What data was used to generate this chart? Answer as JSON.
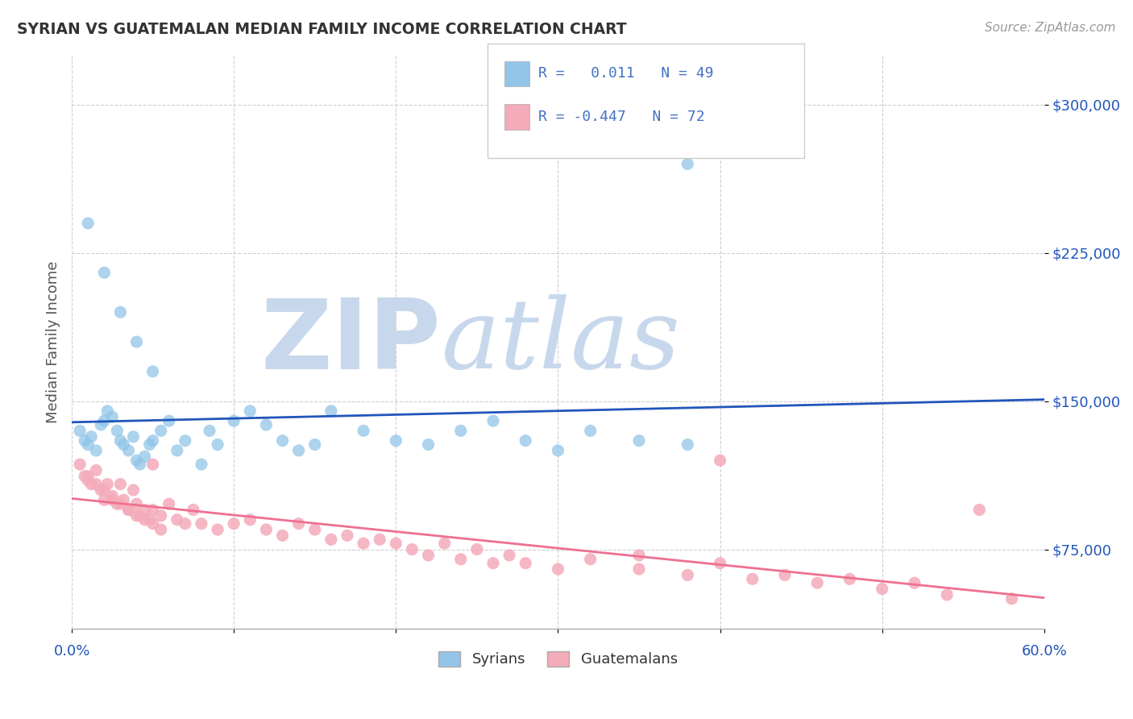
{
  "title": "SYRIAN VS GUATEMALAN MEDIAN FAMILY INCOME CORRELATION CHART",
  "source": "Source: ZipAtlas.com",
  "ylabel": "Median Family Income",
  "y_ticks": [
    75000,
    150000,
    225000,
    300000
  ],
  "y_tick_labels": [
    "$75,000",
    "$150,000",
    "$225,000",
    "$300,000"
  ],
  "xlim": [
    0.0,
    0.6
  ],
  "ylim": [
    35000,
    325000
  ],
  "syrians_R": "0.011",
  "syrians_N": "49",
  "guatemalans_R": "-0.447",
  "guatemalans_N": "72",
  "syrian_color": "#92C5E8",
  "guatemalan_color": "#F4ABBA",
  "syrian_line_color": "#2255BB",
  "guatemalan_line_color": "#EE7090",
  "watermark_zip": "ZIP",
  "watermark_atlas": "atlas",
  "watermark_color": "#C8D8EC",
  "legend_label_syrian": "Syrians",
  "legend_label_guatemalan": "Guatemalans",
  "legend_text_color": "#4472C4",
  "syrians_x": [
    0.005,
    0.008,
    0.01,
    0.012,
    0.015,
    0.018,
    0.02,
    0.022,
    0.025,
    0.028,
    0.03,
    0.032,
    0.035,
    0.038,
    0.04,
    0.042,
    0.045,
    0.048,
    0.05,
    0.055,
    0.06,
    0.065,
    0.07,
    0.08,
    0.085,
    0.09,
    0.1,
    0.11,
    0.12,
    0.13,
    0.14,
    0.15,
    0.16,
    0.18,
    0.2,
    0.22,
    0.24,
    0.26,
    0.28,
    0.3,
    0.32,
    0.35,
    0.38,
    0.01,
    0.02,
    0.03,
    0.04,
    0.05,
    0.38
  ],
  "syrians_y": [
    135000,
    130000,
    128000,
    132000,
    125000,
    138000,
    140000,
    145000,
    142000,
    135000,
    130000,
    128000,
    125000,
    132000,
    120000,
    118000,
    122000,
    128000,
    130000,
    135000,
    140000,
    125000,
    130000,
    118000,
    135000,
    128000,
    140000,
    145000,
    138000,
    130000,
    125000,
    128000,
    145000,
    135000,
    130000,
    128000,
    135000,
    140000,
    130000,
    125000,
    135000,
    130000,
    128000,
    240000,
    215000,
    195000,
    180000,
    165000,
    270000
  ],
  "guatemalans_x": [
    0.005,
    0.008,
    0.01,
    0.012,
    0.015,
    0.018,
    0.02,
    0.022,
    0.025,
    0.028,
    0.03,
    0.032,
    0.035,
    0.038,
    0.04,
    0.042,
    0.045,
    0.048,
    0.05,
    0.055,
    0.06,
    0.065,
    0.07,
    0.075,
    0.08,
    0.09,
    0.1,
    0.11,
    0.12,
    0.13,
    0.14,
    0.15,
    0.16,
    0.17,
    0.18,
    0.19,
    0.2,
    0.21,
    0.22,
    0.23,
    0.24,
    0.25,
    0.26,
    0.27,
    0.28,
    0.3,
    0.32,
    0.35,
    0.38,
    0.4,
    0.42,
    0.44,
    0.46,
    0.48,
    0.5,
    0.52,
    0.54,
    0.01,
    0.015,
    0.02,
    0.025,
    0.03,
    0.035,
    0.04,
    0.045,
    0.05,
    0.055,
    0.56,
    0.58,
    0.05,
    0.35,
    0.4
  ],
  "guatemalans_y": [
    118000,
    112000,
    110000,
    108000,
    115000,
    105000,
    100000,
    108000,
    102000,
    98000,
    108000,
    100000,
    95000,
    105000,
    98000,
    92000,
    95000,
    90000,
    95000,
    92000,
    98000,
    90000,
    88000,
    95000,
    88000,
    85000,
    88000,
    90000,
    85000,
    82000,
    88000,
    85000,
    80000,
    82000,
    78000,
    80000,
    78000,
    75000,
    72000,
    78000,
    70000,
    75000,
    68000,
    72000,
    68000,
    65000,
    70000,
    65000,
    62000,
    68000,
    60000,
    62000,
    58000,
    60000,
    55000,
    58000,
    52000,
    112000,
    108000,
    105000,
    100000,
    98000,
    95000,
    92000,
    90000,
    88000,
    85000,
    95000,
    50000,
    118000,
    72000,
    120000
  ]
}
